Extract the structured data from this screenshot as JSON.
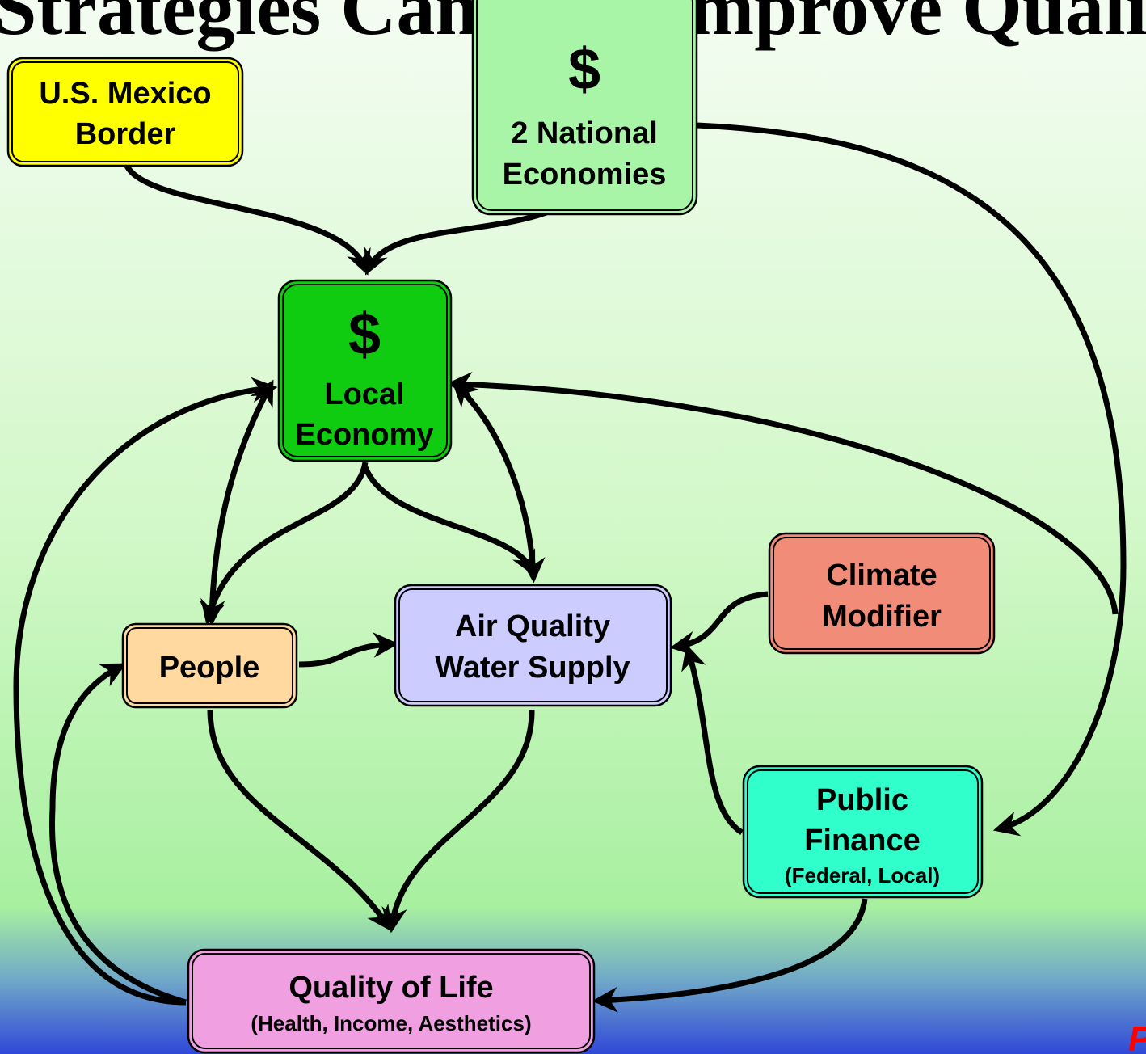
{
  "title": "Strategies Can Best Improve Quality of",
  "nodes": [
    {
      "lines": [
        "U.S. Mexico",
        "Border"
      ]
    },
    {
      "symbol": "$",
      "lines": [
        "2 National",
        "Economies"
      ]
    },
    {
      "symbol": "$",
      "lines": [
        "Local",
        "Economy"
      ]
    },
    {
      "lines": [
        "Climate",
        "Modifier"
      ]
    },
    {
      "lines": [
        "People"
      ]
    },
    {
      "lines": [
        "Air Quality",
        "Water Supply"
      ]
    },
    {
      "lines": [
        "Public",
        "Finance"
      ],
      "note": "(Federal, Local)"
    },
    {
      "lines": [
        "Quality of Life"
      ],
      "note": "(Health, Income, Aesthetics)"
    }
  ],
  "footer": "P"
}
